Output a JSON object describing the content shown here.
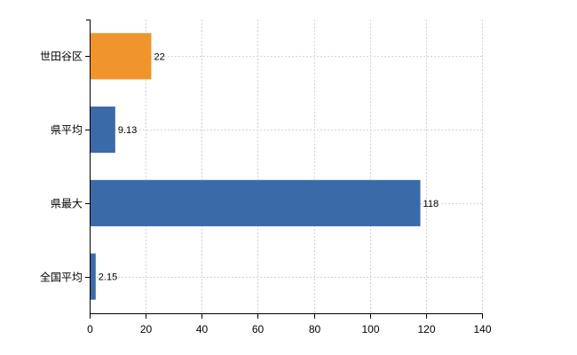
{
  "chart_data": {
    "type": "bar",
    "orientation": "horizontal",
    "categories": [
      "世田谷区",
      "県平均",
      "県最大",
      "全国平均"
    ],
    "values": [
      22,
      9.13,
      118,
      2.15
    ],
    "value_labels": [
      "22",
      "9.13",
      "118",
      "2.15"
    ],
    "bar_colors": [
      "#f0942e",
      "#3a6aa8",
      "#3a6aa8",
      "#3a6aa8"
    ],
    "xlim": [
      0,
      140
    ],
    "x_ticks": [
      0,
      20,
      40,
      60,
      80,
      100,
      120,
      140
    ],
    "title": "",
    "xlabel": "",
    "ylabel": "",
    "grid": true
  }
}
